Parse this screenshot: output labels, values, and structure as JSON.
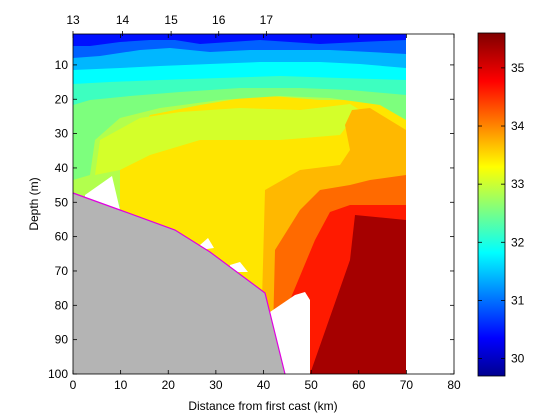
{
  "chart_data": {
    "type": "heatmap",
    "xlabel": "Distance from first cast (km)",
    "ylabel": "Depth (m)",
    "top_axis": {
      "label_texts": [
        "13",
        "14",
        "15",
        "16",
        "17"
      ],
      "values": [
        0,
        10.4,
        20.6,
        30.6,
        40.6
      ]
    },
    "xlim": [
      0,
      80
    ],
    "ylim": [
      100,
      1
    ],
    "x_ticks": [
      0,
      10,
      20,
      30,
      40,
      50,
      60,
      70,
      80
    ],
    "y_ticks": [
      10,
      20,
      30,
      40,
      50,
      60,
      70,
      80,
      90,
      100
    ],
    "colorbar": {
      "range": [
        29.7,
        35.6
      ],
      "ticks": [
        30,
        31,
        32,
        33,
        34,
        35
      ],
      "colormap": "jet"
    },
    "land_color": "#b4b4b4",
    "bottom_line_color": "#e000e0",
    "data_extent_x": [
      0.5,
      70.5
    ],
    "cast_positions_x": [
      0,
      10.4,
      20.6,
      30.6,
      40.6,
      50,
      60,
      70
    ],
    "cast_bottom_depth": [
      47,
      52,
      58,
      62,
      70,
      76,
      100,
      100
    ],
    "surface_values": {
      "near_surface_min": 29.9,
      "mid_column": 33.2,
      "deep_offshore_max": 35.6
    }
  }
}
